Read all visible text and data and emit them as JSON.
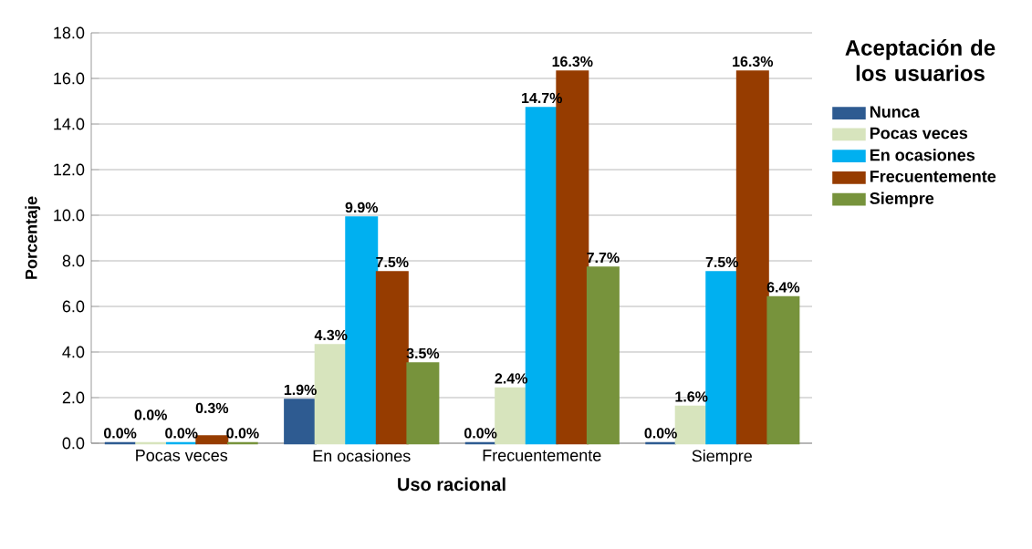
{
  "chart_data": {
    "type": "bar",
    "xlabel": "Uso racional",
    "ylabel": "Porcentaje",
    "legend_title": "Aceptación de los usuarios",
    "categories": [
      "Pocas veces",
      "En ocasiones",
      "Frecuentemente",
      "Siempre"
    ],
    "series": [
      {
        "name": "Nunca",
        "color": "#2e5b91",
        "values": [
          0.0,
          1.9,
          0.0,
          0.0
        ],
        "value_labels": [
          "0.0%",
          "1.9%",
          "0.0%",
          "0.0%"
        ]
      },
      {
        "name": "Pocas veces",
        "color": "#d7e4bd",
        "values": [
          0.0,
          4.3,
          2.4,
          1.6
        ],
        "value_labels": [
          "0.0%",
          "4.3%",
          "2.4%",
          "1.6%"
        ]
      },
      {
        "name": "En ocasiones",
        "color": "#00b0f0",
        "values": [
          0.0,
          9.9,
          14.7,
          7.5
        ],
        "value_labels": [
          "0.0%",
          "9.9%",
          "14.7%",
          "7.5%"
        ]
      },
      {
        "name": "Frecuentemente",
        "color": "#963c00",
        "values": [
          0.3,
          7.5,
          16.3,
          16.3
        ],
        "value_labels": [
          "0.3%",
          "7.5%",
          "16.3%",
          "16.3%"
        ]
      },
      {
        "name": "Siempre",
        "color": "#77933c",
        "values": [
          0.0,
          3.5,
          7.7,
          6.4
        ],
        "value_labels": [
          "0.0%",
          "3.5%",
          "7.7%",
          "6.4%"
        ]
      }
    ],
    "ylim": [
      0,
      18
    ],
    "yticks": [
      {
        "value": 0,
        "label": "0.0"
      },
      {
        "value": 2,
        "label": "2.0"
      },
      {
        "value": 4,
        "label": "4.0"
      },
      {
        "value": 6,
        "label": "6.0"
      },
      {
        "value": 8,
        "label": "8.0"
      },
      {
        "value": 10,
        "label": "10.0"
      },
      {
        "value": 12,
        "label": "12.0"
      },
      {
        "value": 14,
        "label": "14.0"
      },
      {
        "value": 16,
        "label": "16.0"
      },
      {
        "value": 18,
        "label": "18.0"
      }
    ],
    "grid": "y",
    "legend": "right"
  }
}
